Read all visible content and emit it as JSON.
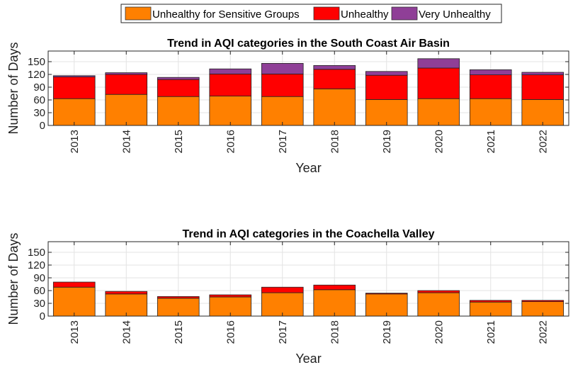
{
  "legend": {
    "items": [
      {
        "label": "Unhealthy for Sensitive Groups",
        "color": "#FF8000"
      },
      {
        "label": "Unhealthy",
        "color": "#FF0000"
      },
      {
        "label": "Very Unhealthy",
        "color": "#8F3F97"
      }
    ]
  },
  "chart_data": [
    {
      "type": "bar",
      "stacked": true,
      "title": "Trend in AQI categories in the South Coast Air Basin",
      "xlabel": "Year",
      "ylabel": "Number of Days",
      "ylim": [
        0,
        175
      ],
      "yticks": [
        0,
        30,
        60,
        90,
        120,
        150
      ],
      "grid": true,
      "categories": [
        "2013",
        "2014",
        "2015",
        "2016",
        "2017",
        "2018",
        "2019",
        "2020",
        "2021",
        "2022"
      ],
      "series": [
        {
          "name": "Unhealthy for Sensitive Groups",
          "values": [
            63,
            73,
            68,
            69,
            68,
            86,
            61,
            63,
            63,
            61
          ]
        },
        {
          "name": "Unhealthy",
          "values": [
            51,
            47,
            40,
            52,
            53,
            46,
            57,
            72,
            56,
            58
          ]
        },
        {
          "name": "Very Unhealthy",
          "values": [
            3,
            4,
            5,
            12,
            25,
            9,
            9,
            22,
            12,
            6
          ]
        }
      ]
    },
    {
      "type": "bar",
      "stacked": true,
      "title": "Trend in AQI categories in the Coachella Valley",
      "xlabel": "Year",
      "ylabel": "Number of Days",
      "ylim": [
        0,
        175
      ],
      "yticks": [
        0,
        30,
        60,
        90,
        120,
        150
      ],
      "grid": true,
      "categories": [
        "2013",
        "2014",
        "2015",
        "2016",
        "2017",
        "2018",
        "2019",
        "2020",
        "2021",
        "2022"
      ],
      "series": [
        {
          "name": "Unhealthy for Sensitive Groups",
          "values": [
            68,
            52,
            42,
            45,
            55,
            62,
            52,
            55,
            33,
            34
          ]
        },
        {
          "name": "Unhealthy",
          "values": [
            12,
            6,
            4,
            5,
            13,
            11,
            2,
            5,
            4,
            3
          ]
        },
        {
          "name": "Very Unhealthy",
          "values": [
            0,
            0,
            0,
            0,
            0,
            0,
            0,
            0,
            0,
            0
          ]
        }
      ]
    }
  ]
}
